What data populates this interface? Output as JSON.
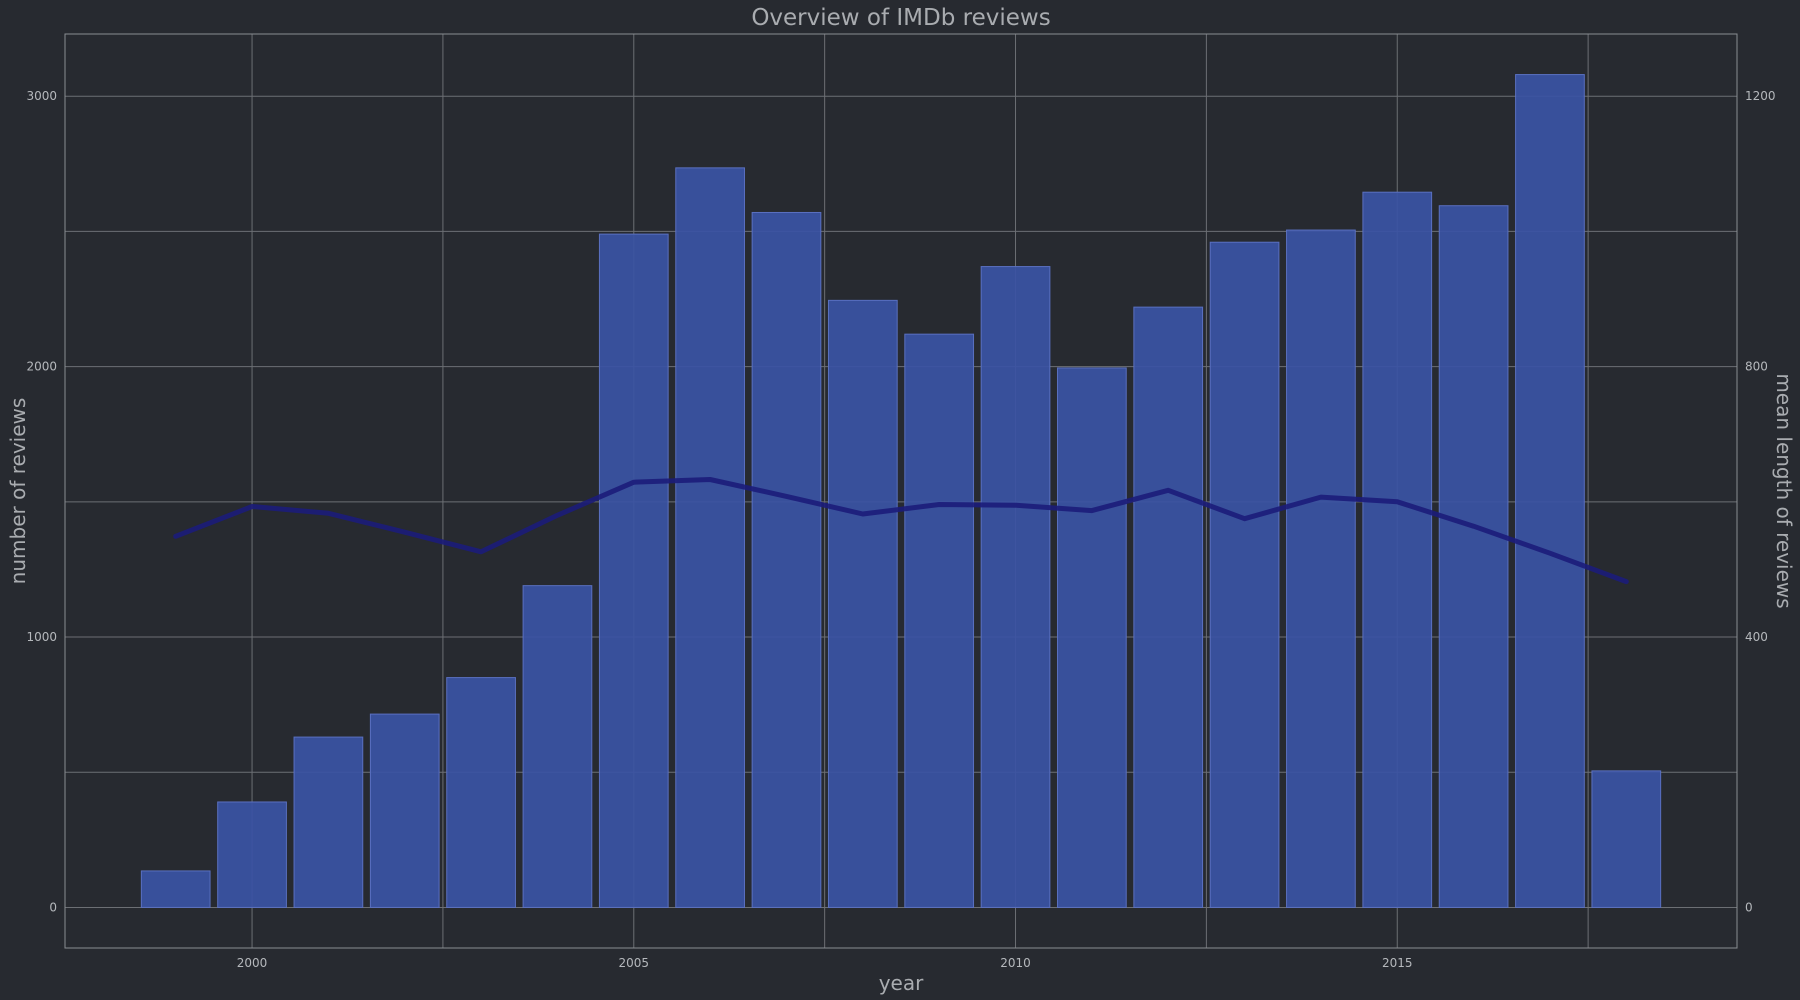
{
  "chart_data": {
    "type": "bar",
    "title": "Overview of IMDb reviews",
    "xlabel": "year",
    "ylabel": "number of reviews",
    "y2label": "mean length of reviews",
    "x": [
      1999,
      2000,
      2001,
      2002,
      2003,
      2004,
      2005,
      2006,
      2007,
      2008,
      2009,
      2010,
      2011,
      2012,
      2013,
      2014,
      2015,
      2016,
      2017,
      2018
    ],
    "xlim": [
      1997.55,
      2019.45
    ],
    "ylim": [
      -150,
      3230
    ],
    "y2lim": [
      -60,
      1292
    ],
    "xticks": [
      2000,
      2005,
      2010,
      2015
    ],
    "yticks": [
      0,
      1000,
      2000,
      3000
    ],
    "y2ticks": [
      0,
      400,
      800,
      1200
    ],
    "grid": true,
    "series": [
      {
        "type": "bar",
        "axis": "left",
        "values": [
          135,
          390,
          630,
          715,
          850,
          1190,
          2490,
          2735,
          2570,
          2245,
          2120,
          2370,
          1995,
          2220,
          2460,
          2505,
          2645,
          2595,
          3080,
          505
        ],
        "color": "#3a53a4"
      },
      {
        "type": "line",
        "axis": "right",
        "values": [
          549,
          593,
          583,
          555,
          526,
          580,
          629,
          633,
          608,
          582,
          596,
          595,
          587,
          617,
          575,
          607,
          600,
          564,
          524,
          482
        ],
        "color": "#1c1c7a"
      }
    ]
  }
}
